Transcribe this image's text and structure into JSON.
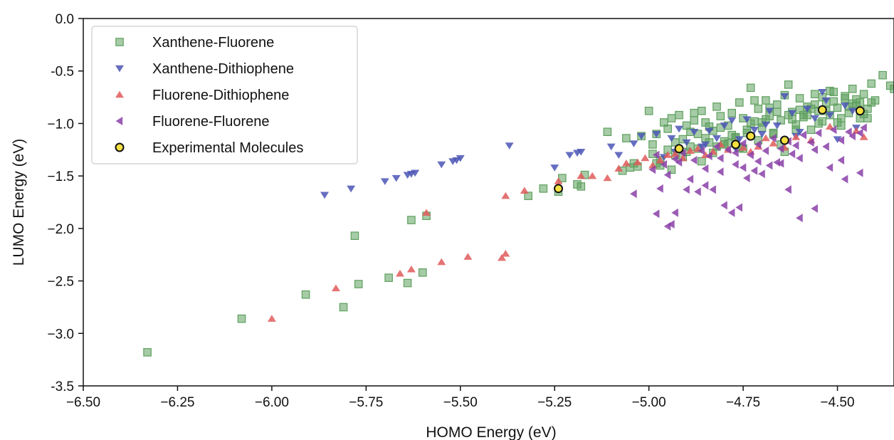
{
  "chart_data": {
    "type": "scatter",
    "xlabel": "HOMO Energy (eV)",
    "ylabel": "LUMO Energy (eV)",
    "xlim": [
      -6.5,
      -4.35
    ],
    "ylim": [
      -3.5,
      0.0
    ],
    "x_ticks": [
      -6.5,
      -6.25,
      -6.0,
      -5.75,
      -5.5,
      -5.25,
      -5.0,
      -4.75,
      -4.5
    ],
    "x_tick_labels": [
      "−6.50",
      "−6.25",
      "−6.00",
      "−5.75",
      "−5.50",
      "−5.25",
      "−5.00",
      "−4.75",
      "−4.50"
    ],
    "y_ticks": [
      0.0,
      -0.5,
      -1.0,
      -1.5,
      -2.0,
      -2.5,
      -3.0,
      -3.5
    ],
    "y_tick_labels": [
      "0.0",
      "-0.5",
      "−1.0",
      "−1.5",
      "−2.0",
      "−2.5",
      "−3.0",
      "-3.5"
    ],
    "grid": false,
    "legend_position": "top-left",
    "series": [
      {
        "name": "Xanthene-Fluorene",
        "marker": "square",
        "color": "#5ea05e",
        "x": [
          -6.33,
          -6.08,
          -5.91,
          -5.81,
          -5.78,
          -5.77,
          -5.69,
          -5.64,
          -5.63,
          -5.6,
          -5.59,
          -5.32,
          -5.28,
          -5.24,
          -5.23,
          -5.19,
          -5.18,
          -5.17,
          -5.11,
          -5.07,
          -5.06,
          -5.05,
          -5.04,
          -5.03,
          -5.02,
          -5.0,
          -4.99,
          -4.98,
          -4.97,
          -4.96,
          -4.95,
          -4.94,
          -4.93,
          -4.92,
          -4.91,
          -4.9,
          -4.89,
          -4.88,
          -4.87,
          -4.86,
          -4.85,
          -4.84,
          -4.83,
          -4.82,
          -4.81,
          -4.8,
          -4.79,
          -4.78,
          -4.77,
          -4.76,
          -4.75,
          -4.74,
          -4.73,
          -4.72,
          -4.71,
          -4.7,
          -4.69,
          -4.68,
          -4.67,
          -4.66,
          -4.65,
          -4.64,
          -4.63,
          -4.62,
          -4.61,
          -4.6,
          -4.59,
          -4.58,
          -4.57,
          -4.56,
          -4.55,
          -4.54,
          -4.53,
          -4.52,
          -4.51,
          -4.5,
          -4.49,
          -4.48,
          -4.47,
          -4.46,
          -4.45,
          -4.44,
          -4.43,
          -4.42,
          -4.41,
          -4.4,
          -4.38,
          -4.36,
          -4.35,
          -4.99,
          -4.97,
          -4.95,
          -4.93,
          -4.91,
          -4.89,
          -4.87,
          -4.85,
          -4.83,
          -4.81,
          -4.79,
          -4.77,
          -4.75,
          -4.73,
          -4.71,
          -4.69,
          -4.67,
          -4.65,
          -4.63,
          -4.61,
          -4.59,
          -4.57,
          -4.55,
          -4.53,
          -4.51,
          -4.49,
          -4.47,
          -4.45,
          -4.43,
          -4.41,
          -4.98,
          -4.94,
          -4.9,
          -4.86,
          -4.82,
          -4.78,
          -4.74,
          -4.7,
          -4.66,
          -4.62,
          -4.58,
          -4.54,
          -4.5,
          -4.46,
          -4.42,
          -4.72,
          -4.68,
          -4.64,
          -4.6,
          -4.56,
          -4.52,
          -4.48,
          -4.44,
          -4.88,
          -4.84,
          -4.8,
          -4.76
        ],
        "y": [
          -3.18,
          -2.86,
          -2.63,
          -2.75,
          -2.07,
          -2.53,
          -2.47,
          -2.52,
          -1.92,
          -2.42,
          -1.88,
          -1.69,
          -1.62,
          -1.65,
          -1.52,
          -1.58,
          -1.6,
          -1.49,
          -1.08,
          -1.45,
          -1.14,
          -1.42,
          -1.38,
          -1.41,
          -1.12,
          -0.88,
          -1.29,
          -1.1,
          -1.4,
          -0.99,
          -1.05,
          -0.95,
          -1.3,
          -0.92,
          -1.15,
          -1.02,
          -1.22,
          -0.97,
          -1.1,
          -0.88,
          -0.99,
          -1.18,
          -1.07,
          -0.84,
          -0.93,
          -1.2,
          -1.02,
          -0.9,
          -1.14,
          -0.8,
          -0.95,
          -1.09,
          -0.66,
          -0.98,
          -0.86,
          -1.04,
          -0.78,
          -0.93,
          -1.1,
          -0.82,
          -0.97,
          -1.27,
          -0.63,
          -0.89,
          -1.01,
          -0.76,
          -0.92,
          -0.84,
          -1.06,
          -0.72,
          -0.88,
          -0.98,
          -0.8,
          -0.92,
          -0.7,
          -0.85,
          -1.02,
          -0.74,
          -0.9,
          -0.67,
          -0.83,
          -0.95,
          -0.72,
          -0.86,
          -0.62,
          -0.78,
          -0.54,
          -0.64,
          -0.67,
          -1.2,
          -1.35,
          -1.25,
          -1.18,
          -1.32,
          -1.08,
          -1.24,
          -1.14,
          -1.28,
          -1.04,
          -1.19,
          -1.13,
          -1.24,
          -1.0,
          -1.16,
          -0.96,
          -1.09,
          -1.2,
          -0.92,
          -1.06,
          -0.94,
          -0.86,
          -1.0,
          -0.88,
          -0.79,
          -0.95,
          -0.84,
          -0.77,
          -0.91,
          -0.8,
          -1.38,
          -1.44,
          -1.27,
          -1.36,
          -1.22,
          -1.11,
          -1.06,
          -0.99,
          -0.89,
          -0.96,
          -0.92,
          -0.75,
          -0.99,
          -0.81,
          -0.95,
          -0.78,
          -0.85,
          -0.73,
          -0.87,
          -0.82,
          -0.69,
          -0.76,
          -0.8,
          -0.9,
          -1.03,
          -1.17,
          -1.23
        ]
      },
      {
        "name": "Xanthene-Dithiophene",
        "marker": "triangle-down",
        "color": "#4a55b5",
        "x": [
          -5.86,
          -5.79,
          -5.7,
          -5.67,
          -5.64,
          -5.63,
          -5.62,
          -5.55,
          -5.52,
          -5.51,
          -5.5,
          -5.37,
          -5.25,
          -5.21,
          -5.19,
          -5.18,
          -5.1,
          -5.08,
          -5.04,
          -5.02,
          -4.98,
          -4.96,
          -4.94,
          -4.92,
          -4.9,
          -4.88,
          -4.86,
          -4.84,
          -4.82,
          -4.8,
          -4.78,
          -4.76,
          -4.74,
          -4.72,
          -4.7,
          -4.68,
          -4.66,
          -4.64,
          -4.62,
          -4.6,
          -4.58,
          -4.56,
          -4.54,
          -4.52,
          -4.5,
          -4.48,
          -4.46,
          -4.93,
          -4.85,
          -4.77,
          -4.69,
          -4.61,
          -4.53,
          -4.45
        ],
        "y": [
          -1.68,
          -1.62,
          -1.55,
          -1.52,
          -1.49,
          -1.48,
          -1.47,
          -1.39,
          -1.36,
          -1.35,
          -1.33,
          -1.21,
          -1.42,
          -1.3,
          -1.28,
          -1.27,
          -1.22,
          -1.3,
          -1.19,
          -1.12,
          -1.1,
          -1.32,
          -1.14,
          -1.05,
          -1.18,
          -1.08,
          -1.22,
          -1.07,
          -1.14,
          -1.02,
          -0.97,
          -1.15,
          -0.96,
          -1.06,
          -1.1,
          -0.88,
          -1.02,
          -0.74,
          -0.9,
          -1.08,
          -0.86,
          -0.95,
          -0.7,
          -0.92,
          -1.15,
          -0.83,
          -0.88,
          -1.27,
          -1.2,
          -1.24,
          -1.01,
          -1.12,
          -0.78,
          -1.04
        ]
      },
      {
        "name": "Fluorene-Dithiophene",
        "marker": "triangle-up",
        "color": "#e05a5a",
        "x": [
          -6.0,
          -5.83,
          -5.66,
          -5.63,
          -5.59,
          -5.55,
          -5.48,
          -5.39,
          -5.38,
          -5.38,
          -5.33,
          -5.24,
          -5.18,
          -5.15,
          -5.11,
          -5.08,
          -5.06,
          -5.03,
          -5.01,
          -4.99,
          -4.97,
          -4.95,
          -4.93,
          -4.91,
          -4.89,
          -4.87,
          -4.85,
          -4.83,
          -4.81,
          -4.79,
          -4.77,
          -4.75,
          -4.73,
          -4.71,
          -4.69,
          -4.67,
          -4.64,
          -4.61,
          -4.57,
          -4.52,
          -4.45,
          -4.43
        ],
        "y": [
          -2.86,
          -2.57,
          -2.43,
          -2.39,
          -1.85,
          -2.32,
          -2.27,
          -2.28,
          -2.24,
          -1.69,
          -1.64,
          -1.55,
          -1.5,
          -1.5,
          -1.52,
          -1.43,
          -1.38,
          -1.37,
          -1.33,
          -1.4,
          -1.35,
          -1.3,
          -1.29,
          -1.33,
          -1.26,
          -1.24,
          -1.3,
          -1.27,
          -1.2,
          -1.25,
          -1.18,
          -1.23,
          -1.27,
          -1.22,
          -1.14,
          -1.19,
          -1.23,
          -1.13,
          -1.16,
          -1.03,
          -1.07,
          -1.13
        ]
      },
      {
        "name": "Fluorene-Fluorene",
        "marker": "triangle-left",
        "color": "#8a3fa8",
        "x": [
          -5.04,
          -4.98,
          -4.94,
          -4.97,
          -4.95,
          -4.93,
          -4.9,
          -4.87,
          -4.85,
          -4.83,
          -4.8,
          -4.78,
          -4.76,
          -4.74,
          -4.72,
          -4.7,
          -4.68,
          -4.66,
          -4.63,
          -4.6,
          -4.56,
          -4.52,
          -4.48,
          -4.44,
          -4.99,
          -4.96,
          -4.92,
          -4.88,
          -4.84,
          -4.81,
          -4.77,
          -4.73,
          -4.69,
          -4.65,
          -4.61,
          -4.57,
          -4.53,
          -4.49,
          -4.46,
          -4.43,
          -4.98,
          -4.93,
          -4.91,
          -4.86,
          -4.82,
          -4.79,
          -4.75,
          -4.71,
          -4.67,
          -4.63,
          -4.59,
          -4.55,
          -4.51,
          -4.47,
          -4.95,
          -4.89,
          -4.85,
          -4.81,
          -4.77,
          -4.75,
          -4.71,
          -4.65,
          -4.62,
          -4.6,
          -4.56,
          -4.49,
          -4.44
        ],
        "y": [
          -1.67,
          -1.86,
          -1.96,
          -1.62,
          -1.98,
          -1.85,
          -1.63,
          -1.65,
          -1.59,
          -1.63,
          -1.78,
          -1.85,
          -1.8,
          -1.52,
          -1.45,
          -1.48,
          -1.4,
          -1.37,
          -1.63,
          -1.9,
          -1.81,
          -1.42,
          -1.53,
          -1.47,
          -1.44,
          -1.39,
          -1.37,
          -1.35,
          -1.31,
          -1.33,
          -1.28,
          -1.3,
          -1.26,
          -1.24,
          -1.21,
          -1.18,
          -1.22,
          -1.16,
          -1.12,
          -1.04,
          -1.3,
          -1.34,
          -1.28,
          -1.26,
          -1.22,
          -1.25,
          -1.19,
          -1.2,
          -1.14,
          -1.17,
          -1.11,
          -1.09,
          -1.06,
          -1.08,
          -1.49,
          -1.53,
          -1.43,
          -1.46,
          -1.39,
          -1.42,
          -1.36,
          -1.38,
          -1.29,
          -1.33,
          -1.25,
          -1.35,
          -1.09
        ]
      },
      {
        "name": "Experimental Molecules",
        "marker": "circle",
        "color": "#f5e042",
        "edge_color": "#111111",
        "x": [
          -5.24,
          -4.92,
          -4.77,
          -4.73,
          -4.64,
          -4.54,
          -4.44
        ],
        "y": [
          -1.62,
          -1.24,
          -1.2,
          -1.12,
          -1.16,
          -0.87,
          -0.88
        ]
      }
    ]
  }
}
